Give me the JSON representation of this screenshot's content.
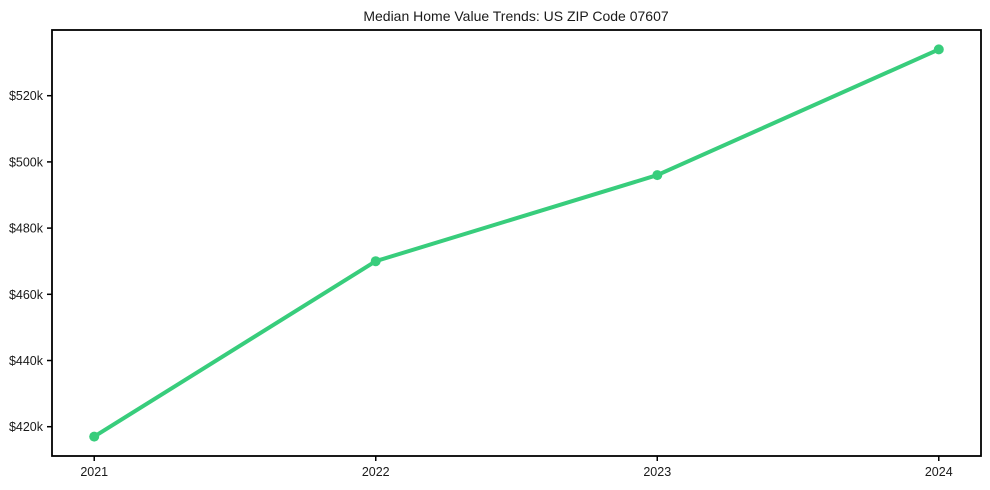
{
  "window": {
    "background": "#ffffff"
  },
  "chart_data": {
    "type": "line",
    "title": "Median Home Value Trends: US ZIP Code 07607",
    "x": [
      2021,
      2022,
      2023,
      2024
    ],
    "x_tick_labels": [
      "2021",
      "2022",
      "2023",
      "2024"
    ],
    "series": [
      {
        "name": "median-home-value",
        "values": [
          417000,
          470000,
          496000,
          534000
        ]
      }
    ],
    "y_ticks": [
      {
        "value": 420000,
        "label": "$420k"
      },
      {
        "value": 440000,
        "label": "$440k"
      },
      {
        "value": 460000,
        "label": "$460k"
      },
      {
        "value": 480000,
        "label": "$480k"
      },
      {
        "value": 500000,
        "label": "$500k"
      },
      {
        "value": 520000,
        "label": "$520k"
      }
    ],
    "xlim": [
      2020.85,
      2024.15
    ],
    "ylim": [
      411150,
      539850
    ],
    "grid": false,
    "legend": "none",
    "xlabel": "",
    "ylabel": "",
    "line_color": "#38cd7c",
    "marker": "circle",
    "axis_color": "#000000",
    "text_color": "#1a1a1a"
  }
}
